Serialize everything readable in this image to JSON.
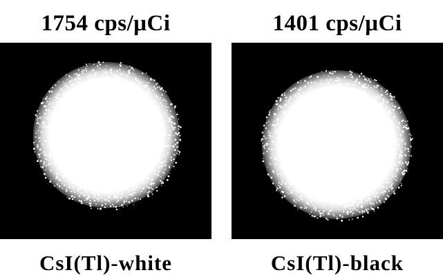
{
  "panels": [
    {
      "top_label": "1754 cps/μCi",
      "bottom_label": "CsI(Tl)-white"
    },
    {
      "top_label": "1401 cps/μCi",
      "bottom_label": "CsI(Tl)-black"
    }
  ],
  "colors": {
    "background": "#ffffff",
    "image_background": "#000000",
    "spot": "#ffffff",
    "text": "#000000"
  }
}
